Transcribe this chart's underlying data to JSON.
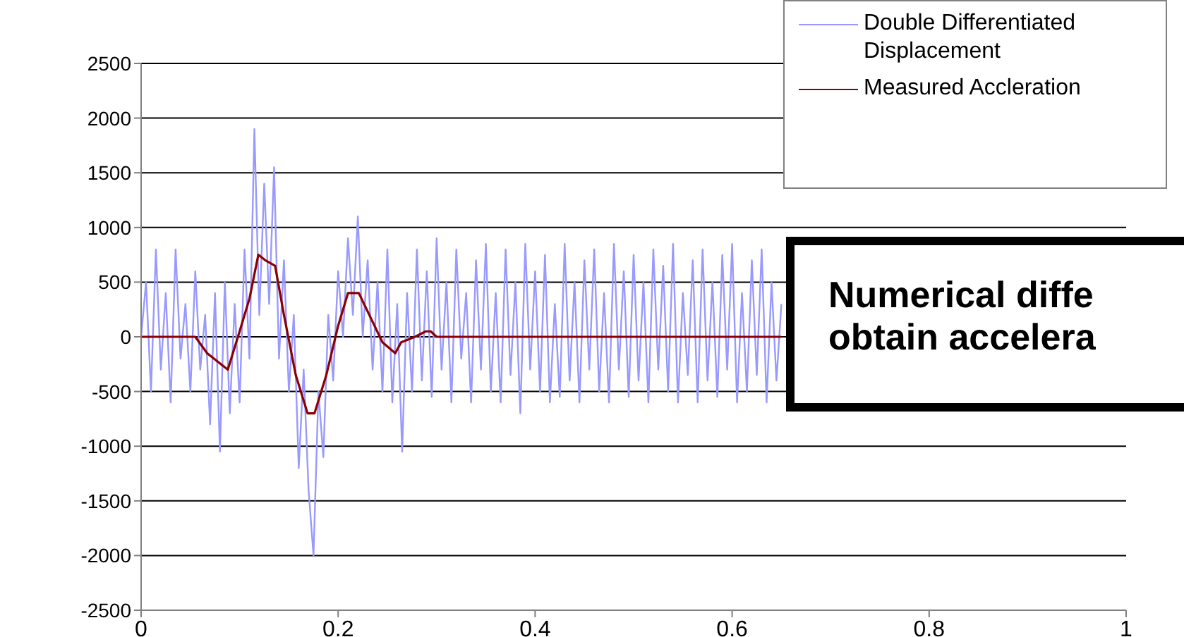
{
  "chart_data": {
    "type": "line",
    "xlim": [
      0,
      1
    ],
    "xticks": [
      0,
      0.2,
      0.4,
      0.6,
      0.8,
      1
    ],
    "ylim": [
      -2500,
      2500
    ],
    "yticks": [
      -2500,
      -2000,
      -1500,
      -1000,
      -500,
      0,
      500,
      1000,
      1500,
      2000,
      2500
    ],
    "grid": "y",
    "legend": "top right",
    "marker": "none",
    "annotations": [
      "Numerical diffe",
      "obtain accelera"
    ],
    "series": [
      {
        "name": "Double Differentiated Displacement",
        "color": "#9999ff",
        "x": [
          0,
          0.005,
          0.01,
          0.015,
          0.02,
          0.025,
          0.03,
          0.035,
          0.04,
          0.045,
          0.05,
          0.055,
          0.06,
          0.065,
          0.07,
          0.075,
          0.08,
          0.085,
          0.09,
          0.095,
          0.1,
          0.105,
          0.11,
          0.115,
          0.12,
          0.125,
          0.13,
          0.135,
          0.14,
          0.145,
          0.15,
          0.155,
          0.16,
          0.165,
          0.17,
          0.175,
          0.18,
          0.185,
          0.19,
          0.195,
          0.2,
          0.205,
          0.21,
          0.215,
          0.22,
          0.225,
          0.23,
          0.235,
          0.24,
          0.245,
          0.25,
          0.255,
          0.26,
          0.265,
          0.27,
          0.275,
          0.28,
          0.285,
          0.29,
          0.295,
          0.3,
          0.305,
          0.31,
          0.315,
          0.32,
          0.325,
          0.33,
          0.335,
          0.34,
          0.345,
          0.35,
          0.355,
          0.36,
          0.365,
          0.37,
          0.375,
          0.38,
          0.385,
          0.39,
          0.395,
          0.4,
          0.405,
          0.41,
          0.415,
          0.42,
          0.425,
          0.43,
          0.435,
          0.44,
          0.445,
          0.45,
          0.455,
          0.46,
          0.465,
          0.47,
          0.475,
          0.48,
          0.485,
          0.49,
          0.495,
          0.5,
          0.505,
          0.51,
          0.515,
          0.52,
          0.525,
          0.53,
          0.535,
          0.54,
          0.545,
          0.55,
          0.555,
          0.56,
          0.565,
          0.57,
          0.575,
          0.58,
          0.585,
          0.59,
          0.595,
          0.6,
          0.605,
          0.61,
          0.615,
          0.62,
          0.625,
          0.63,
          0.635,
          0.64,
          0.645,
          0.65
        ],
        "values": [
          0,
          500,
          -500,
          800,
          -300,
          400,
          -600,
          800,
          -200,
          300,
          -500,
          600,
          -300,
          200,
          -800,
          400,
          -1050,
          500,
          -700,
          300,
          -600,
          800,
          -200,
          1900,
          200,
          1400,
          300,
          1550,
          -200,
          700,
          -500,
          200,
          -1200,
          -300,
          -1400,
          -2000,
          -500,
          -1100,
          200,
          -400,
          600,
          0,
          900,
          200,
          1100,
          0,
          700,
          -300,
          500,
          -500,
          800,
          -600,
          300,
          -1050,
          400,
          -500,
          800,
          -400,
          600,
          -550,
          900,
          -300,
          500,
          -600,
          800,
          -200,
          400,
          -600,
          700,
          -300,
          850,
          -500,
          400,
          -600,
          800,
          -350,
          500,
          -700,
          850,
          -300,
          600,
          -500,
          750,
          -600,
          300,
          -550,
          850,
          -400,
          500,
          -600,
          700,
          -300,
          800,
          -500,
          400,
          -600,
          850,
          -300,
          600,
          -550,
          750,
          -400,
          500,
          -600,
          800,
          -300,
          650,
          -500,
          850,
          -600,
          400,
          -350,
          700,
          -600,
          800,
          -400,
          500,
          -550,
          750,
          -300,
          850,
          -600,
          400,
          -500,
          700,
          -350,
          800,
          -600,
          500,
          -400,
          300
        ]
      },
      {
        "name": "Measured Accleration",
        "color": "#8b0000",
        "x": [
          0,
          0.055,
          0.067,
          0.088,
          0.1,
          0.11,
          0.119,
          0.126,
          0.136,
          0.145,
          0.157,
          0.169,
          0.176,
          0.188,
          0.2,
          0.21,
          0.221,
          0.245,
          0.258,
          0.264,
          0.278,
          0.289,
          0.294,
          0.3,
          0.35,
          0.4,
          0.45,
          0.5,
          0.55,
          0.6,
          0.65
        ],
        "values": [
          0,
          0,
          -150,
          -300,
          50,
          350,
          750,
          700,
          650,
          200,
          -350,
          -700,
          -700,
          -350,
          100,
          400,
          400,
          -50,
          -150,
          -50,
          0,
          50,
          50,
          0,
          0,
          0,
          0,
          0,
          0,
          0,
          0
        ]
      }
    ]
  }
}
